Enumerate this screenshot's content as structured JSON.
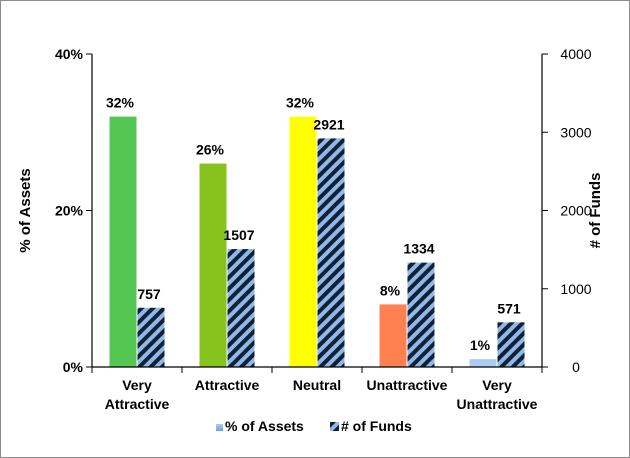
{
  "chart_data": {
    "type": "bar",
    "categories": [
      [
        "Very",
        "Attractive"
      ],
      [
        "Attractive"
      ],
      [
        "Neutral"
      ],
      [
        "Unattractive"
      ],
      [
        "Very",
        "Unattractive"
      ]
    ],
    "series": [
      {
        "name": "% of Assets",
        "axis": "left",
        "values": [
          32,
          26,
          32,
          8,
          1
        ],
        "labels": [
          "32%",
          "26%",
          "32%",
          "8%",
          "1%"
        ],
        "colors": [
          "#55c652",
          "#86c31d",
          "#ffff00",
          "#ff8050",
          "#a9cdf2"
        ]
      },
      {
        "name": "# of Funds",
        "axis": "right",
        "values": [
          757,
          1507,
          2921,
          1334,
          571
        ],
        "labels": [
          "757",
          "1507",
          "2921",
          "1334",
          "571"
        ],
        "pattern": "diagonal-stripes",
        "colors": [
          "#112033",
          "#8eb9ea"
        ]
      }
    ],
    "ylabel_left": "% of Assets",
    "ylabel_right": "# of Funds",
    "ylim_left": [
      0,
      40
    ],
    "ylim_right": [
      0,
      4000
    ],
    "yticks_left": [
      "0%",
      "20%",
      "40%"
    ],
    "yticks_right": [
      "0",
      "1000",
      "2000",
      "3000",
      "4000"
    ],
    "grid": false,
    "legend_position": "bottom"
  }
}
